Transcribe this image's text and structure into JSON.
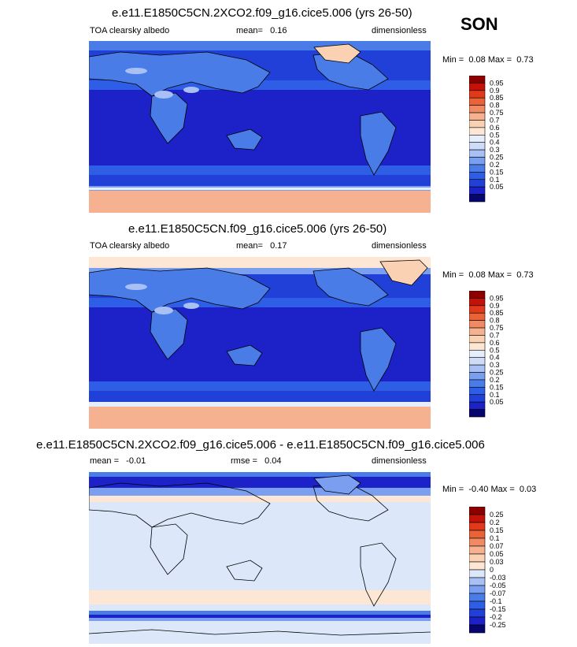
{
  "season": "SON",
  "colors": {
    "abs_scale": [
      "#07066e",
      "#1c22c8",
      "#2140d8",
      "#2e5ee6",
      "#4a7ce8",
      "#7b9ff0",
      "#a8c0f4",
      "#cfdcf8",
      "#e6eefb",
      "#fde7d4",
      "#fbd1b3",
      "#f6b190",
      "#f08a62",
      "#ea6336",
      "#e03a1a",
      "#c41208",
      "#8e0000"
    ],
    "diff_scale": [
      "#07066e",
      "#1c22c8",
      "#2140d8",
      "#2e5ee6",
      "#4a7ce8",
      "#7b9ff0",
      "#a8c0f4",
      "#dce7fa",
      "#fde7d4",
      "#fbd1b3",
      "#f6b190",
      "#f08a62",
      "#ea6336",
      "#e03a1a",
      "#c41208",
      "#8e0000"
    ]
  },
  "chart_data": [
    {
      "type": "heatmap",
      "title": "e.e11.E1850C5CN.2XCO2.f09_g16.cice5.006 (yrs 26-50)",
      "left_label": "TOA clearsky albedo",
      "stat_label": "mean=",
      "stat_value": "0.16",
      "units": "dimensionless",
      "min_label": "Min =",
      "min_value": "0.08",
      "max_label": "Max =",
      "max_value": "0.73",
      "colorbar_labels": [
        "0.95",
        "0.9",
        "0.85",
        "0.8",
        "0.75",
        "0.7",
        "0.6",
        "0.5",
        "0.4",
        "0.3",
        "0.25",
        "0.2",
        "0.15",
        "0.1",
        "0.05"
      ]
    },
    {
      "type": "heatmap",
      "title": "e.e11.E1850C5CN.f09_g16.cice5.006 (yrs 26-50)",
      "left_label": "TOA clearsky albedo",
      "stat_label": "mean=",
      "stat_value": "0.17",
      "units": "dimensionless",
      "min_label": "Min =",
      "min_value": "0.08",
      "max_label": "Max =",
      "max_value": "0.73",
      "colorbar_labels": [
        "0.95",
        "0.9",
        "0.85",
        "0.8",
        "0.75",
        "0.7",
        "0.6",
        "0.5",
        "0.4",
        "0.3",
        "0.25",
        "0.2",
        "0.15",
        "0.1",
        "0.05"
      ]
    },
    {
      "type": "heatmap",
      "title": "e.e11.E1850C5CN.2XCO2.f09_g16.cice5.006 - e.e11.E1850C5CN.f09_g16.cice5.006",
      "left_label": "mean =",
      "left_value": "-0.01",
      "stat_label": "rmse =",
      "stat_value": "0.04",
      "units": "dimensionless",
      "min_label": "Min =",
      "min_value": "-0.40",
      "max_label": "Max =",
      "max_value": "0.03",
      "colorbar_labels": [
        "0.25",
        "0.2",
        "0.15",
        "0.1",
        "0.07",
        "0.05",
        "0.03",
        "0",
        "-0.03",
        "-0.05",
        "-0.07",
        "-0.1",
        "-0.15",
        "-0.2",
        "-0.25"
      ]
    }
  ]
}
